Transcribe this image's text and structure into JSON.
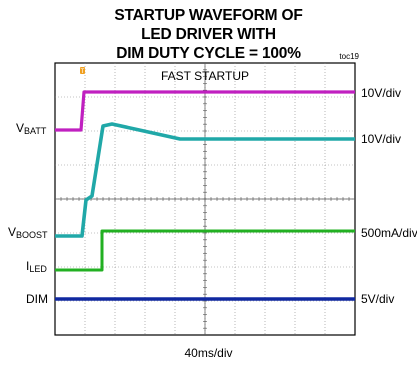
{
  "chart_data": {
    "type": "line",
    "title_lines": [
      "STARTUP WAVEFORM OF",
      "LED DRIVER WITH",
      "DIM DUTY CYCLE = 100%"
    ],
    "toc": "toc19",
    "annotation": "FAST STARTUP",
    "xlabel": "40ms/div",
    "grid": true,
    "divisions": {
      "x": 10,
      "y": 8
    },
    "trigger_marker": "T",
    "channels": [
      {
        "name": "VBATT",
        "label_main": "V",
        "label_sub": "BATT",
        "scale": "10V/div",
        "color": "#c020c0"
      },
      {
        "name": "VBOOST",
        "label_main": "V",
        "label_sub": "BOOST",
        "scale": "10V/div",
        "color": "#20a8a8"
      },
      {
        "name": "ILED",
        "label_main": "I",
        "label_sub": "LED",
        "scale": "500mA/div",
        "color": "#22b022"
      },
      {
        "name": "DIM",
        "label_main": "DIM",
        "label_sub": "",
        "scale": "5V/div",
        "color": "#1028a0"
      }
    ]
  }
}
